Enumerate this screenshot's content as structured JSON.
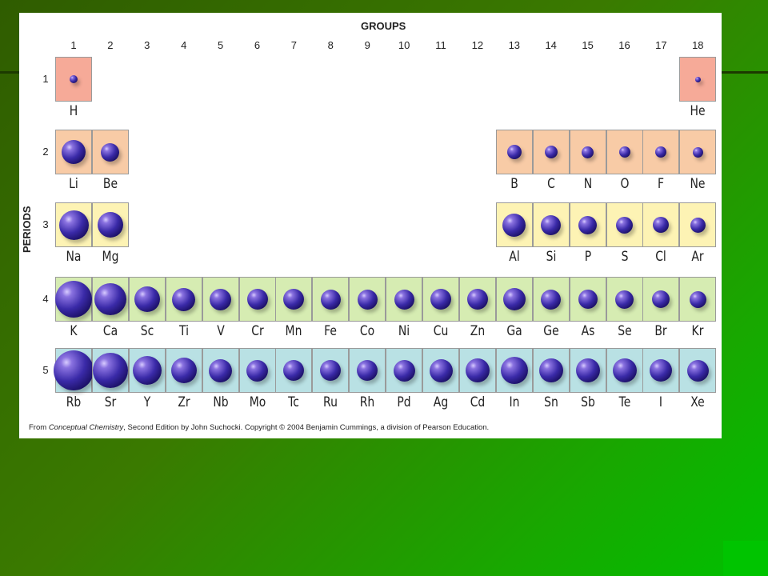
{
  "figure": {
    "groups_title": "GROUPS",
    "periods_title": "PERIODS",
    "group_numbers": [
      "1",
      "2",
      "3",
      "4",
      "5",
      "6",
      "7",
      "8",
      "9",
      "10",
      "11",
      "12",
      "13",
      "14",
      "15",
      "16",
      "17",
      "18"
    ],
    "period_numbers": [
      "1",
      "2",
      "3",
      "4",
      "5"
    ],
    "colors": {
      "period1": "#f6aa98",
      "period2": "#f8cba6",
      "period3": "#fdf3b4",
      "period4": "#d6ecb2",
      "period5": "#b9e1e4",
      "atom": "#3a2aa8"
    },
    "elements": [
      {
        "symbol": "H",
        "group": 1,
        "period": 1,
        "size": 10
      },
      {
        "symbol": "He",
        "group": 18,
        "period": 1,
        "size": 7
      },
      {
        "symbol": "Li",
        "group": 1,
        "period": 2,
        "size": 30
      },
      {
        "symbol": "Be",
        "group": 2,
        "period": 2,
        "size": 23
      },
      {
        "symbol": "B",
        "group": 13,
        "period": 2,
        "size": 18
      },
      {
        "symbol": "C",
        "group": 14,
        "period": 2,
        "size": 16
      },
      {
        "symbol": "N",
        "group": 15,
        "period": 2,
        "size": 15
      },
      {
        "symbol": "O",
        "group": 16,
        "period": 2,
        "size": 14
      },
      {
        "symbol": "F",
        "group": 17,
        "period": 2,
        "size": 14
      },
      {
        "symbol": "Ne",
        "group": 18,
        "period": 2,
        "size": 13
      },
      {
        "symbol": "Na",
        "group": 1,
        "period": 3,
        "size": 37
      },
      {
        "symbol": "Mg",
        "group": 2,
        "period": 3,
        "size": 32
      },
      {
        "symbol": "Al",
        "group": 13,
        "period": 3,
        "size": 29
      },
      {
        "symbol": "Si",
        "group": 14,
        "period": 3,
        "size": 25
      },
      {
        "symbol": "P",
        "group": 15,
        "period": 3,
        "size": 23
      },
      {
        "symbol": "S",
        "group": 16,
        "period": 3,
        "size": 21
      },
      {
        "symbol": "Cl",
        "group": 17,
        "period": 3,
        "size": 20
      },
      {
        "symbol": "Ar",
        "group": 18,
        "period": 3,
        "size": 19
      },
      {
        "symbol": "K",
        "group": 1,
        "period": 4,
        "size": 46
      },
      {
        "symbol": "Ca",
        "group": 2,
        "period": 4,
        "size": 40
      },
      {
        "symbol": "Sc",
        "group": 3,
        "period": 4,
        "size": 32
      },
      {
        "symbol": "Ti",
        "group": 4,
        "period": 4,
        "size": 29
      },
      {
        "symbol": "V",
        "group": 5,
        "period": 4,
        "size": 27
      },
      {
        "symbol": "Cr",
        "group": 6,
        "period": 4,
        "size": 26
      },
      {
        "symbol": "Mn",
        "group": 7,
        "period": 4,
        "size": 26
      },
      {
        "symbol": "Fe",
        "group": 8,
        "period": 4,
        "size": 25
      },
      {
        "symbol": "Co",
        "group": 9,
        "period": 4,
        "size": 25
      },
      {
        "symbol": "Ni",
        "group": 10,
        "period": 4,
        "size": 25
      },
      {
        "symbol": "Cu",
        "group": 11,
        "period": 4,
        "size": 26
      },
      {
        "symbol": "Zn",
        "group": 12,
        "period": 4,
        "size": 26
      },
      {
        "symbol": "Ga",
        "group": 13,
        "period": 4,
        "size": 28
      },
      {
        "symbol": "Ge",
        "group": 14,
        "period": 4,
        "size": 25
      },
      {
        "symbol": "As",
        "group": 15,
        "period": 4,
        "size": 24
      },
      {
        "symbol": "Se",
        "group": 16,
        "period": 4,
        "size": 23
      },
      {
        "symbol": "Br",
        "group": 17,
        "period": 4,
        "size": 22
      },
      {
        "symbol": "Kr",
        "group": 18,
        "period": 4,
        "size": 21
      },
      {
        "symbol": "Rb",
        "group": 1,
        "period": 5,
        "size": 50
      },
      {
        "symbol": "Sr",
        "group": 2,
        "period": 5,
        "size": 44
      },
      {
        "symbol": "Y",
        "group": 3,
        "period": 5,
        "size": 36
      },
      {
        "symbol": "Zr",
        "group": 4,
        "period": 5,
        "size": 32
      },
      {
        "symbol": "Nb",
        "group": 5,
        "period": 5,
        "size": 29
      },
      {
        "symbol": "Mo",
        "group": 6,
        "period": 5,
        "size": 27
      },
      {
        "symbol": "Tc",
        "group": 7,
        "period": 5,
        "size": 26
      },
      {
        "symbol": "Ru",
        "group": 8,
        "period": 5,
        "size": 26
      },
      {
        "symbol": "Rh",
        "group": 9,
        "period": 5,
        "size": 26
      },
      {
        "symbol": "Pd",
        "group": 10,
        "period": 5,
        "size": 27
      },
      {
        "symbol": "Ag",
        "group": 11,
        "period": 5,
        "size": 29
      },
      {
        "symbol": "Cd",
        "group": 12,
        "period": 5,
        "size": 30
      },
      {
        "symbol": "In",
        "group": 13,
        "period": 5,
        "size": 34
      },
      {
        "symbol": "Sn",
        "group": 14,
        "period": 5,
        "size": 30
      },
      {
        "symbol": "Sb",
        "group": 15,
        "period": 5,
        "size": 30
      },
      {
        "symbol": "Te",
        "group": 16,
        "period": 5,
        "size": 30
      },
      {
        "symbol": "I",
        "group": 17,
        "period": 5,
        "size": 28
      },
      {
        "symbol": "Xe",
        "group": 18,
        "period": 5,
        "size": 27
      }
    ],
    "credit_prefix": "From ",
    "credit_book": "Conceptual Chemistry",
    "credit_suffix": ", Second Edition by John Suchocki. Copyright © 2004 Benjamin Cummings, a division of Pearson Education."
  }
}
